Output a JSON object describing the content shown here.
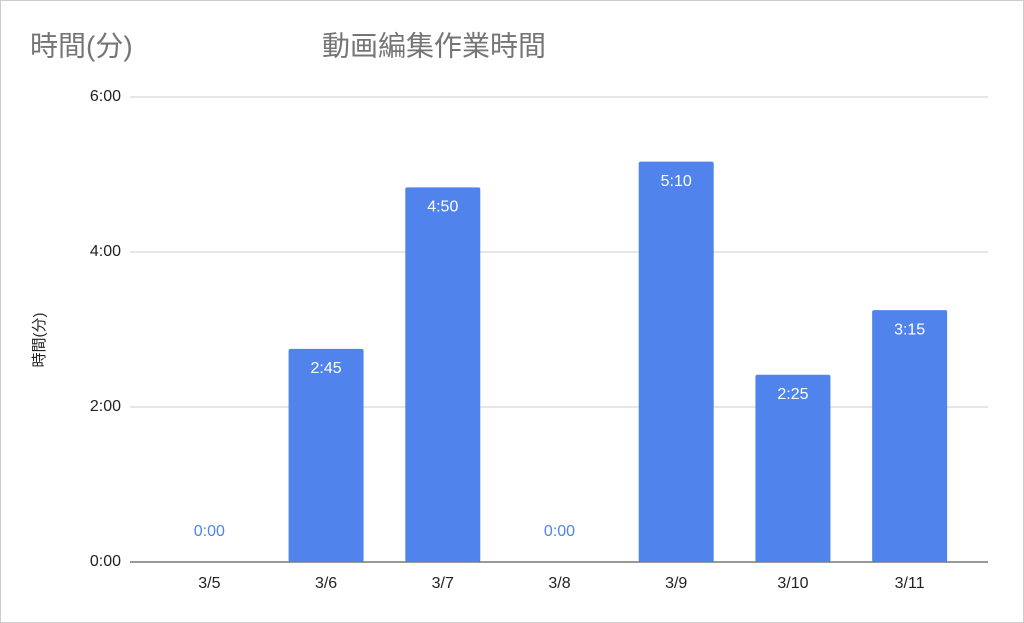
{
  "chart_data": {
    "type": "bar",
    "corner_label": "時間(分)",
    "title": "動画編集作業時間",
    "ylabel": "時間(分)",
    "categories": [
      "3/5",
      "3/6",
      "3/7",
      "3/8",
      "3/9",
      "3/10",
      "3/11"
    ],
    "values": [
      0,
      2.75,
      4.8333,
      0,
      5.1667,
      2.4167,
      3.25
    ],
    "value_labels": [
      "0:00",
      "2:45",
      "4:50",
      "0:00",
      "5:10",
      "2:25",
      "3:15"
    ],
    "color": "#5084ec",
    "ylim": [
      0,
      6
    ],
    "yticks": [
      {
        "value": 0,
        "label": "0:00"
      },
      {
        "value": 2,
        "label": "2:00"
      },
      {
        "value": 4,
        "label": "4:00"
      },
      {
        "value": 6,
        "label": "6:00"
      }
    ],
    "grid": true
  }
}
